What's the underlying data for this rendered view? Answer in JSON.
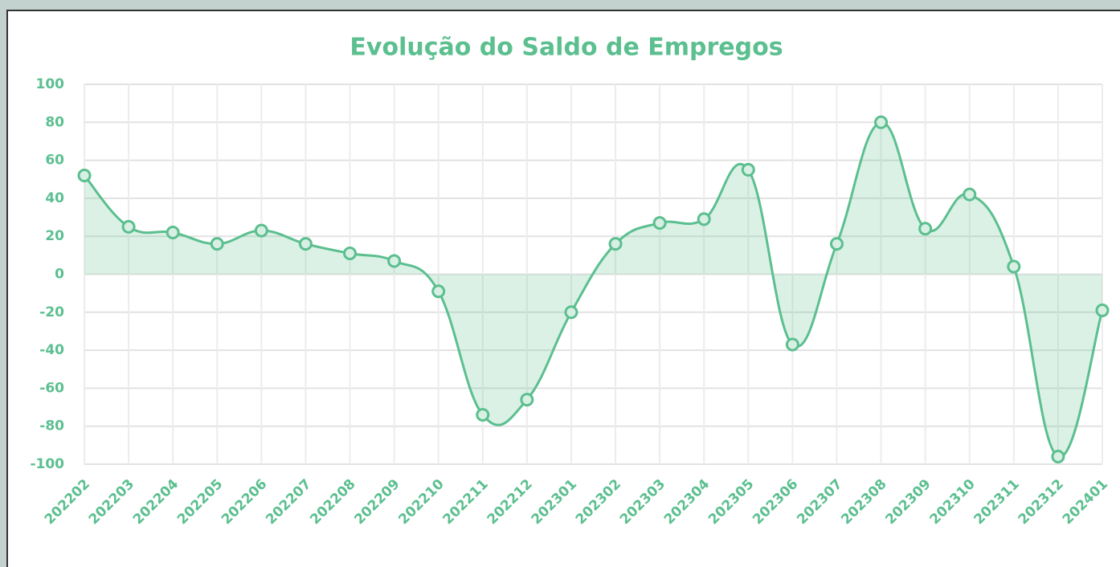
{
  "chart_data": {
    "type": "line",
    "title": "Evolução do Saldo de Empregos",
    "categories": [
      "202202",
      "202203",
      "202204",
      "202205",
      "202206",
      "202207",
      "202208",
      "202209",
      "202210",
      "202211",
      "202212",
      "202301",
      "202302",
      "202303",
      "202304",
      "202305",
      "202306",
      "202307",
      "202308",
      "202309",
      "202310",
      "202311",
      "202312",
      "202401"
    ],
    "series": [
      {
        "name": "Saldo",
        "color": "#5bbf8f",
        "values": [
          52,
          25,
          22,
          16,
          23,
          16,
          11,
          7,
          -9,
          -74,
          -66,
          -20,
          16,
          27,
          29,
          55,
          -37,
          16,
          80,
          24,
          42,
          4,
          -96,
          -19
        ]
      }
    ],
    "ylim": [
      -100,
      100
    ],
    "yticks": [
      -100,
      -80,
      -60,
      -40,
      -20,
      0,
      20,
      40,
      60,
      80,
      100
    ],
    "grid": true,
    "fill": true
  }
}
